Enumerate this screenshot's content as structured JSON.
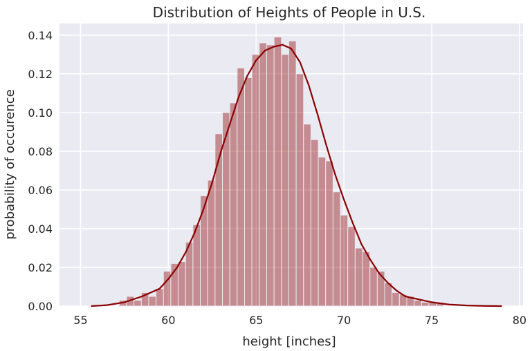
{
  "chart_data": {
    "type": "bar",
    "subtype": "histogram-with-kde",
    "title": "Distribution of Heights of People in U.S.",
    "xlabel": "height [inches]",
    "ylabel": "probability of occurence",
    "xlim": [
      53.8,
      80.2
    ],
    "ylim": [
      0,
      0.146
    ],
    "x_ticks": [
      55,
      60,
      65,
      70,
      75,
      80
    ],
    "y_ticks": [
      0.0,
      0.02,
      0.04,
      0.06,
      0.08,
      0.1,
      0.12,
      0.14
    ],
    "y_tick_labels": [
      "0.00",
      "0.02",
      "0.04",
      "0.06",
      "0.08",
      "0.10",
      "0.12",
      "0.14"
    ],
    "grid": true,
    "background_color": "#eaeaf2",
    "bar_color": "#8b0000",
    "kde_color": "#8b0000",
    "bins": {
      "start": 57.2,
      "width": 0.42,
      "values": [
        0.003,
        0.005,
        0.003,
        0.007,
        0.005,
        0.009,
        0.018,
        0.022,
        0.023,
        0.033,
        0.042,
        0.057,
        0.065,
        0.089,
        0.1,
        0.105,
        0.123,
        0.118,
        0.13,
        0.136,
        0.135,
        0.139,
        0.13,
        0.137,
        0.12,
        0.094,
        0.086,
        0.077,
        0.075,
        0.059,
        0.047,
        0.041,
        0.03,
        0.028,
        0.02,
        0.018,
        0.012,
        0.007,
        0.006,
        0.005,
        0.003,
        0.002,
        0.002,
        0.002
      ]
    },
    "kde": {
      "x": [
        55.6,
        56.5,
        57.5,
        58.5,
        59.0,
        59.5,
        60.0,
        60.5,
        61.0,
        61.5,
        62.0,
        62.5,
        63.0,
        63.5,
        64.0,
        64.5,
        65.0,
        65.5,
        66.0,
        66.5,
        67.0,
        67.5,
        68.0,
        68.5,
        69.0,
        69.5,
        70.0,
        70.5,
        71.0,
        71.5,
        72.0,
        72.5,
        73.0,
        73.5,
        74.0,
        75.0,
        76.0,
        77.0,
        78.0,
        79.0
      ],
      "y": [
        0.0,
        0.0005,
        0.002,
        0.005,
        0.007,
        0.009,
        0.014,
        0.02,
        0.028,
        0.038,
        0.05,
        0.064,
        0.08,
        0.094,
        0.108,
        0.119,
        0.127,
        0.132,
        0.134,
        0.135,
        0.133,
        0.126,
        0.114,
        0.099,
        0.083,
        0.068,
        0.055,
        0.043,
        0.032,
        0.024,
        0.017,
        0.012,
        0.008,
        0.005,
        0.004,
        0.002,
        0.0008,
        0.0003,
        0.0001,
        0.0
      ]
    }
  }
}
